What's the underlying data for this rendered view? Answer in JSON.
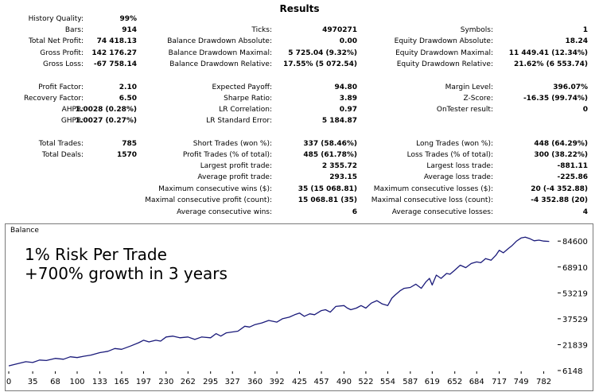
{
  "report": {
    "title": "Results",
    "rows": [
      {
        "c1l": "History Quality:",
        "c1v": "99%",
        "c2l": "",
        "c2v": "",
        "c3l": "",
        "c3v": ""
      },
      {
        "c1l": "Bars:",
        "c1v": "914",
        "c2l": "Ticks:",
        "c2v": "4970271",
        "c3l": "Symbols:",
        "c3v": "1"
      },
      {
        "c1l": "Total Net Profit:",
        "c1v": "74 418.13",
        "c2l": "Balance Drawdown Absolute:",
        "c2v": "0.00",
        "c3l": "Equity Drawdown Absolute:",
        "c3v": "18.24"
      },
      {
        "c1l": "Gross Profit:",
        "c1v": "142 176.27",
        "c2l": "Balance Drawdown Maximal:",
        "c2v": "5 725.04 (9.32%)",
        "c3l": "Equity Drawdown Maximal:",
        "c3v": "11 449.41 (12.34%)"
      },
      {
        "c1l": "Gross Loss:",
        "c1v": "-67 758.14",
        "c2l": "Balance Drawdown Relative:",
        "c2v": "17.55% (5 072.54)",
        "c3l": "Equity Drawdown Relative:",
        "c3v": "21.62% (6 553.74)"
      },
      {
        "c1l": "",
        "c1v": "",
        "c2l": "",
        "c2v": "",
        "c3l": "",
        "c3v": ""
      },
      {
        "c1l": "Profit Factor:",
        "c1v": "2.10",
        "c2l": "Expected Payoff:",
        "c2v": "94.80",
        "c3l": "Margin Level:",
        "c3v": "396.07%"
      },
      {
        "c1l": "Recovery Factor:",
        "c1v": "6.50",
        "c2l": "Sharpe Ratio:",
        "c2v": "3.89",
        "c3l": "Z-Score:",
        "c3v": "-16.35 (99.74%)"
      },
      {
        "c1l": "AHPR:",
        "c1v": "1.0028 (0.28%)",
        "c2l": "LR Correlation:",
        "c2v": "0.97",
        "c3l": "OnTester result:",
        "c3v": "0"
      },
      {
        "c1l": "GHPR:",
        "c1v": "1.0027 (0.27%)",
        "c2l": "LR Standard Error:",
        "c2v": "5 184.87",
        "c3l": "",
        "c3v": ""
      },
      {
        "c1l": "",
        "c1v": "",
        "c2l": "",
        "c2v": "",
        "c3l": "",
        "c3v": ""
      },
      {
        "c1l": "Total Trades:",
        "c1v": "785",
        "c2l": "Short Trades (won %):",
        "c2v": "337 (58.46%)",
        "c3l": "Long Trades (won %):",
        "c3v": "448 (64.29%)"
      },
      {
        "c1l": "Total Deals:",
        "c1v": "1570",
        "c2l": "Profit Trades (% of total):",
        "c2v": "485 (61.78%)",
        "c3l": "Loss Trades (% of total):",
        "c3v": "300 (38.22%)"
      },
      {
        "c1l": "",
        "c1v": "",
        "c2l": "Largest profit trade:",
        "c2v": "2 355.72",
        "c3l": "Largest loss trade:",
        "c3v": "-881.11"
      },
      {
        "c1l": "",
        "c1v": "",
        "c2l": "Average profit trade:",
        "c2v": "293.15",
        "c3l": "Average loss trade:",
        "c3v": "-225.86"
      },
      {
        "c1l": "",
        "c1v": "",
        "c2l": "Maximum consecutive wins ($):",
        "c2v": "35 (15 068.81)",
        "c3l": "Maximum consecutive losses ($):",
        "c3v": "20 (-4 352.88)"
      },
      {
        "c1l": "",
        "c1v": "",
        "c2l": "Maximal consecutive profit (count):",
        "c2v": "15 068.81 (35)",
        "c3l": "Maximal consecutive loss (count):",
        "c3v": "-4 352.88 (20)"
      },
      {
        "c1l": "",
        "c1v": "",
        "c2l": "Average consecutive wins:",
        "c2v": "6",
        "c3l": "Average consecutive losses:",
        "c3v": "4"
      }
    ]
  },
  "chart_data": {
    "type": "line",
    "title": "Balance",
    "annotations": [
      "1% Risk Per Trade",
      "+700% growth in 3 years"
    ],
    "line_color": "#1a1a7a",
    "x_ticks": [
      0,
      35,
      68,
      100,
      133,
      165,
      197,
      230,
      262,
      295,
      327,
      360,
      392,
      425,
      457,
      490,
      522,
      554,
      587,
      619,
      652,
      684,
      717,
      749,
      782
    ],
    "y_ticks": [
      "6148",
      "21839",
      "37529",
      "53219",
      "68910",
      "84600"
    ],
    "xlim": [
      0,
      800
    ],
    "ylim": [
      6148,
      90000
    ],
    "series": [
      {
        "x": [
          0,
          10,
          25,
          35,
          45,
          55,
          68,
          80,
          90,
          100,
          110,
          120,
          133,
          145,
          155,
          165,
          178,
          190,
          197,
          205,
          215,
          222,
          230,
          240,
          250,
          262,
          272,
          282,
          295,
          303,
          310,
          318,
          327,
          335,
          345,
          352,
          360,
          370,
          380,
          392,
          400,
          410,
          418,
          425,
          432,
          440,
          447,
          457,
          463,
          470,
          478,
          490,
          495,
          500,
          508,
          515,
          522,
          530,
          538,
          546,
          554,
          560,
          565,
          572,
          578,
          587,
          595,
          603,
          610,
          615,
          619,
          625,
          632,
          640,
          645,
          652,
          660,
          668,
          676,
          684,
          690,
          697,
          705,
          712,
          717,
          723,
          730,
          736,
          742,
          749,
          755,
          762,
          768,
          775,
          782,
          790
        ],
        "y": [
          9000,
          10000,
          11500,
          11000,
          12500,
          12200,
          13500,
          13000,
          14500,
          14000,
          14800,
          15500,
          17000,
          17800,
          19500,
          19000,
          21000,
          23000,
          24500,
          23500,
          24500,
          24000,
          26500,
          27000,
          26000,
          26500,
          25000,
          26500,
          26000,
          28500,
          27000,
          29000,
          29500,
          30000,
          33000,
          32500,
          34000,
          35000,
          36500,
          35500,
          37500,
          38500,
          40000,
          41000,
          39000,
          40500,
          40000,
          42500,
          43000,
          41500,
          45000,
          45500,
          44000,
          43000,
          44000,
          45500,
          44000,
          47000,
          48500,
          46500,
          45500,
          50000,
          52000,
          54500,
          56000,
          56500,
          58500,
          56000,
          60000,
          62000,
          58000,
          64000,
          62000,
          65000,
          64500,
          67000,
          70000,
          68500,
          71000,
          72000,
          71500,
          74000,
          73000,
          76000,
          79000,
          77500,
          80000,
          82000,
          84500,
          86500,
          87000,
          86000,
          84800,
          85200,
          84600,
          84400
        ]
      }
    ]
  }
}
